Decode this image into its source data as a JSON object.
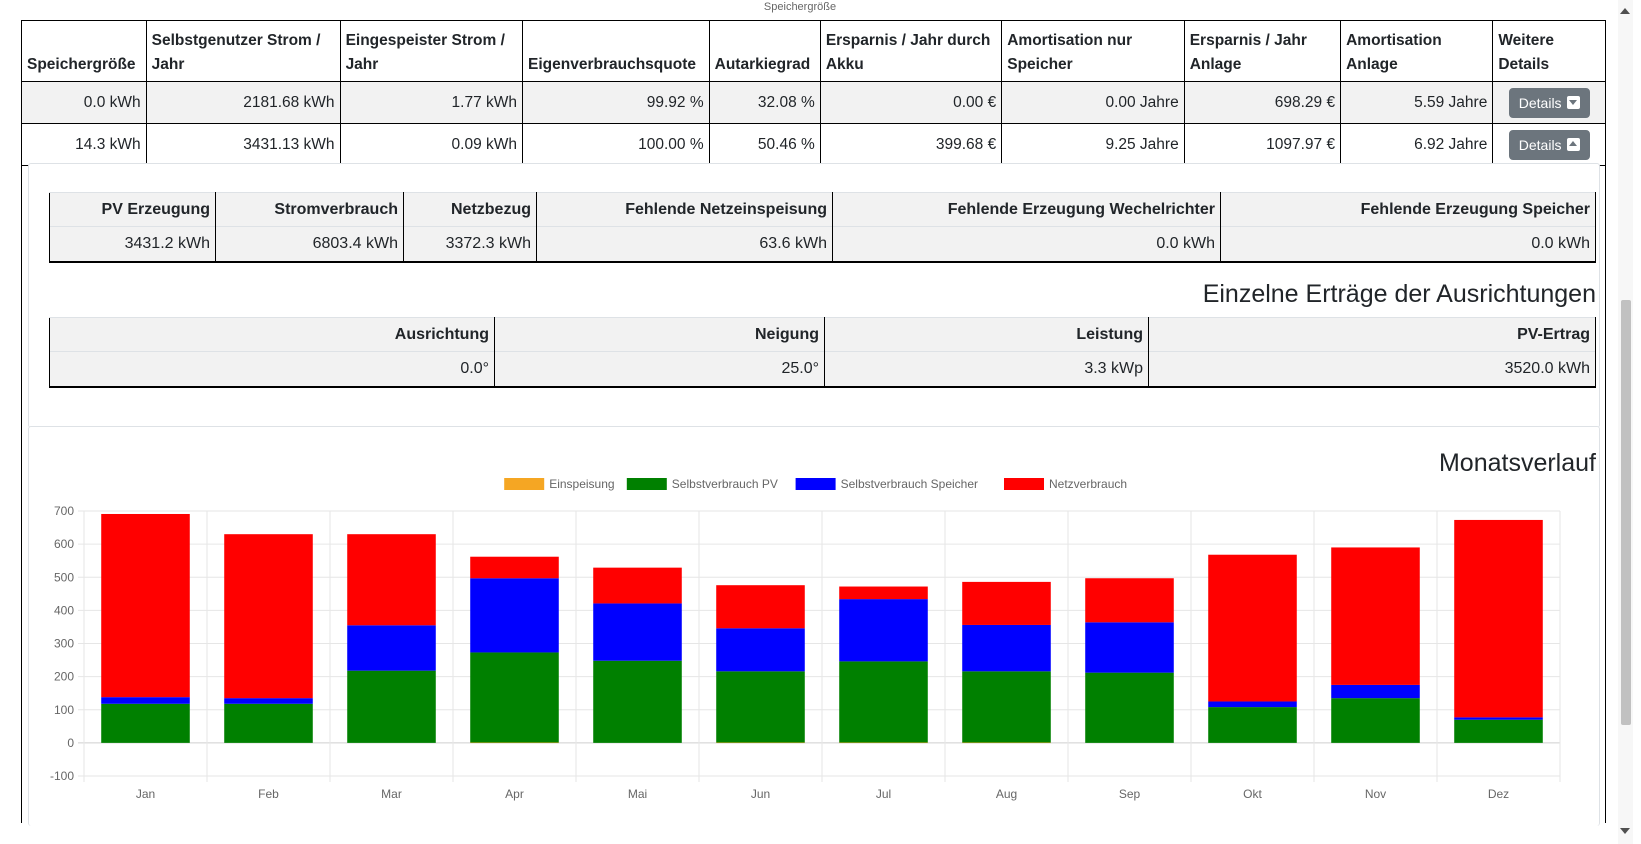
{
  "top_caption": "Speichergröße",
  "main_table": {
    "headers": [
      "Speichergröße",
      "Selbstgenutzer Strom / Jahr",
      "Eingespeister Strom / Jahr",
      "Eigenverbrauchsquote",
      "Autarkiegrad",
      "Ersparnis / Jahr durch Akku",
      "Amortisation nur Speicher",
      "Ersparnis / Jahr Anlage",
      "Amortisation Anlage",
      "Weitere Details"
    ],
    "rows": [
      [
        "0.0 kWh",
        "2181.68 kWh",
        "1.77 kWh",
        "99.92 %",
        "32.08 %",
        "0.00 €",
        "0.00 Jahre",
        "698.29 €",
        "5.59 Jahre"
      ],
      [
        "14.3 kWh",
        "3431.13 kWh",
        "0.09 kWh",
        "100.00 %",
        "50.46 %",
        "399.68 €",
        "9.25 Jahre",
        "1097.97 €",
        "6.92 Jahre"
      ]
    ],
    "details_label": "Details",
    "details_icons": [
      "caret-down-icon",
      "caret-up-icon"
    ]
  },
  "summary_table": {
    "headers": [
      "PV Erzeugung",
      "Stromverbrauch",
      "Netzbezug",
      "Fehlende Netzeinspeisung",
      "Fehlende Erzeugung Wechelrichter",
      "Fehlende Erzeugung Speicher"
    ],
    "row": [
      "3431.2 kWh",
      "6803.4 kWh",
      "3372.3 kWh",
      "63.6 kWh",
      "0.0 kWh",
      "0.0 kWh"
    ]
  },
  "orientation_section": {
    "title": "Einzelne Erträge der Ausrichtungen",
    "headers": [
      "Ausrichtung",
      "Neigung",
      "Leistung",
      "PV-Ertrag"
    ],
    "row": [
      "0.0°",
      "25.0°",
      "3.3 kWp",
      "3520.0 kWh"
    ]
  },
  "chart_section": {
    "title": "Monatsverlauf"
  },
  "chart_data": {
    "type": "bar",
    "stacked": true,
    "categories": [
      "Jan",
      "Feb",
      "Mar",
      "Apr",
      "Mai",
      "Jun",
      "Jul",
      "Aug",
      "Sep",
      "Okt",
      "Nov",
      "Dez"
    ],
    "series": [
      {
        "name": "Einspeisung",
        "color": "#f5a623",
        "values": [
          0,
          0,
          0,
          1,
          0,
          1,
          1,
          1,
          0,
          0,
          0,
          0
        ]
      },
      {
        "name": "Selbstverbrauch PV",
        "color": "#008000",
        "values": [
          118,
          118,
          218,
          272,
          248,
          215,
          245,
          215,
          212,
          108,
          135,
          70
        ]
      },
      {
        "name": "Selbstverbrauch Speicher",
        "color": "#0000ff",
        "values": [
          20,
          17,
          137,
          224,
          173,
          130,
          188,
          140,
          152,
          17,
          40,
          7
        ]
      },
      {
        "name": "Netzverbrauch",
        "color": "#ff0000",
        "values": [
          553,
          495,
          275,
          65,
          108,
          130,
          38,
          130,
          133,
          443,
          415,
          596
        ]
      }
    ],
    "ylim": [
      -100,
      700
    ],
    "yticks": [
      -100,
      0,
      100,
      200,
      300,
      400,
      500,
      600,
      700
    ],
    "legend_position": "top",
    "grid": true
  }
}
